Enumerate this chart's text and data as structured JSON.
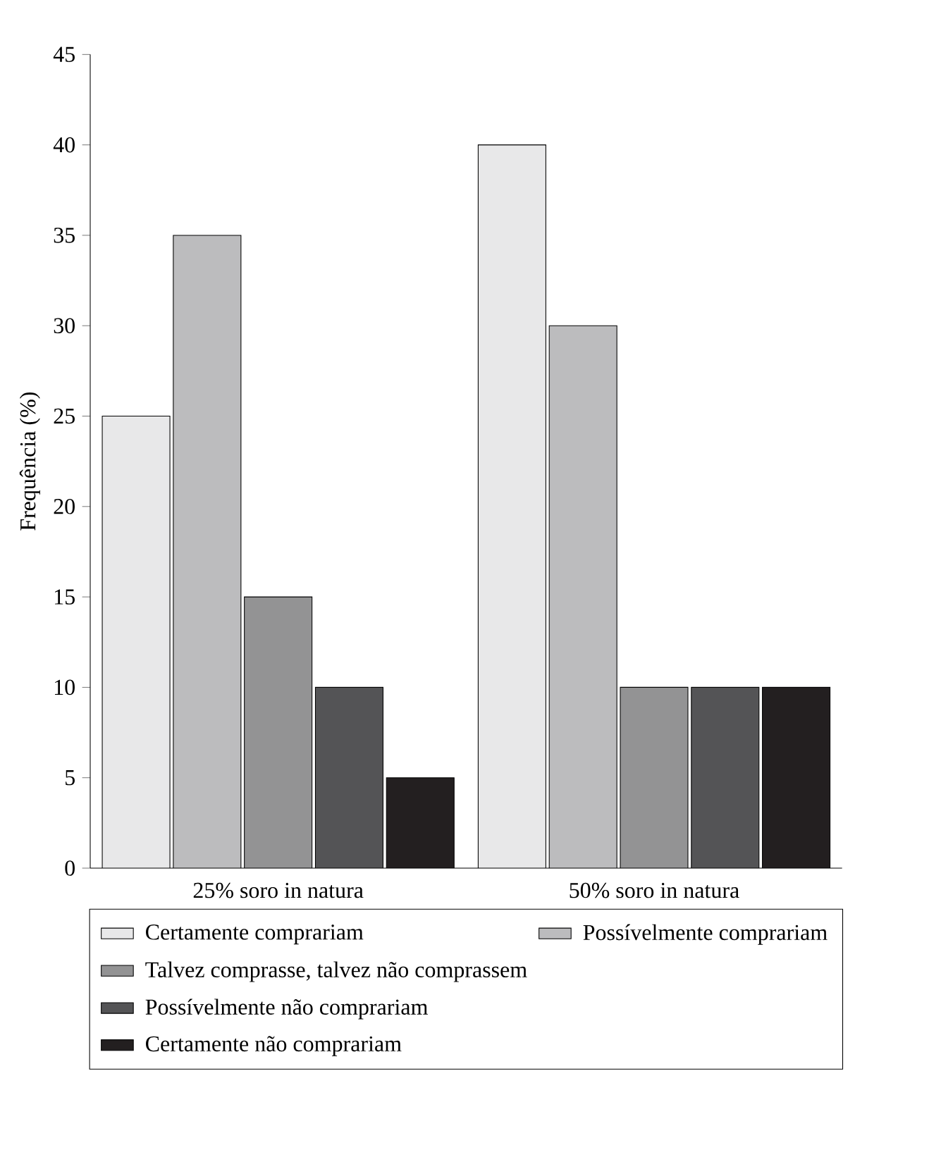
{
  "chart_data": {
    "type": "bar",
    "ylabel": "Frequência (%)",
    "categories": [
      "25% soro in natura",
      "50% soro in natura"
    ],
    "series": [
      {
        "name": "Certamente comprariam",
        "color": "#e8e8e9",
        "values": [
          25,
          40
        ]
      },
      {
        "name": "Possívelmente comprariam",
        "color": "#bcbcbe",
        "values": [
          35,
          30
        ]
      },
      {
        "name": "Talvez comprasse, talvez não comprassem",
        "color": "#939394",
        "values": [
          15,
          10
        ]
      },
      {
        "name": "Possívelmente não comprariam",
        "color": "#545456",
        "values": [
          10,
          10
        ]
      },
      {
        "name": "Certamente não comprariam",
        "color": "#231f20",
        "values": [
          5,
          10
        ]
      }
    ],
    "ylim": [
      0,
      45
    ],
    "yticks": [
      0,
      5,
      10,
      15,
      20,
      25,
      30,
      35,
      40,
      45
    ],
    "grid": false,
    "legend": "bottom"
  }
}
